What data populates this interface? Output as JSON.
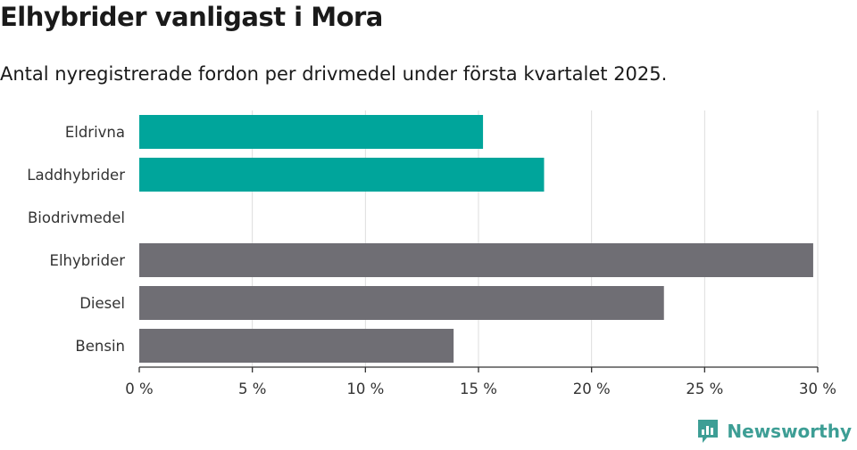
{
  "title": "Elhybrider vanligast i Mora",
  "subtitle": "Antal nyregistrerade fordon per drivmedel under första kvartalet 2025.",
  "brand": "Newsworthy",
  "colors": {
    "highlight": "#00a59b",
    "default": "#6f6e74",
    "grid": "#dddddd"
  },
  "chart_data": {
    "type": "bar",
    "orientation": "horizontal",
    "categories": [
      "Eldrivna",
      "Laddhybrider",
      "Biodrivmedel",
      "Elhybrider",
      "Diesel",
      "Bensin"
    ],
    "values": [
      15.2,
      17.9,
      0,
      29.8,
      23.2,
      13.9
    ],
    "unit": "%",
    "highlight_categories": [
      "Eldrivna",
      "Laddhybrider"
    ],
    "xlim": [
      0,
      30
    ],
    "ticks": [
      0,
      5,
      10,
      15,
      20,
      25,
      30
    ],
    "tick_labels": [
      "0 %",
      "5 %",
      "10 %",
      "15 %",
      "20 %",
      "25 %",
      "30 %"
    ],
    "grid": true
  }
}
